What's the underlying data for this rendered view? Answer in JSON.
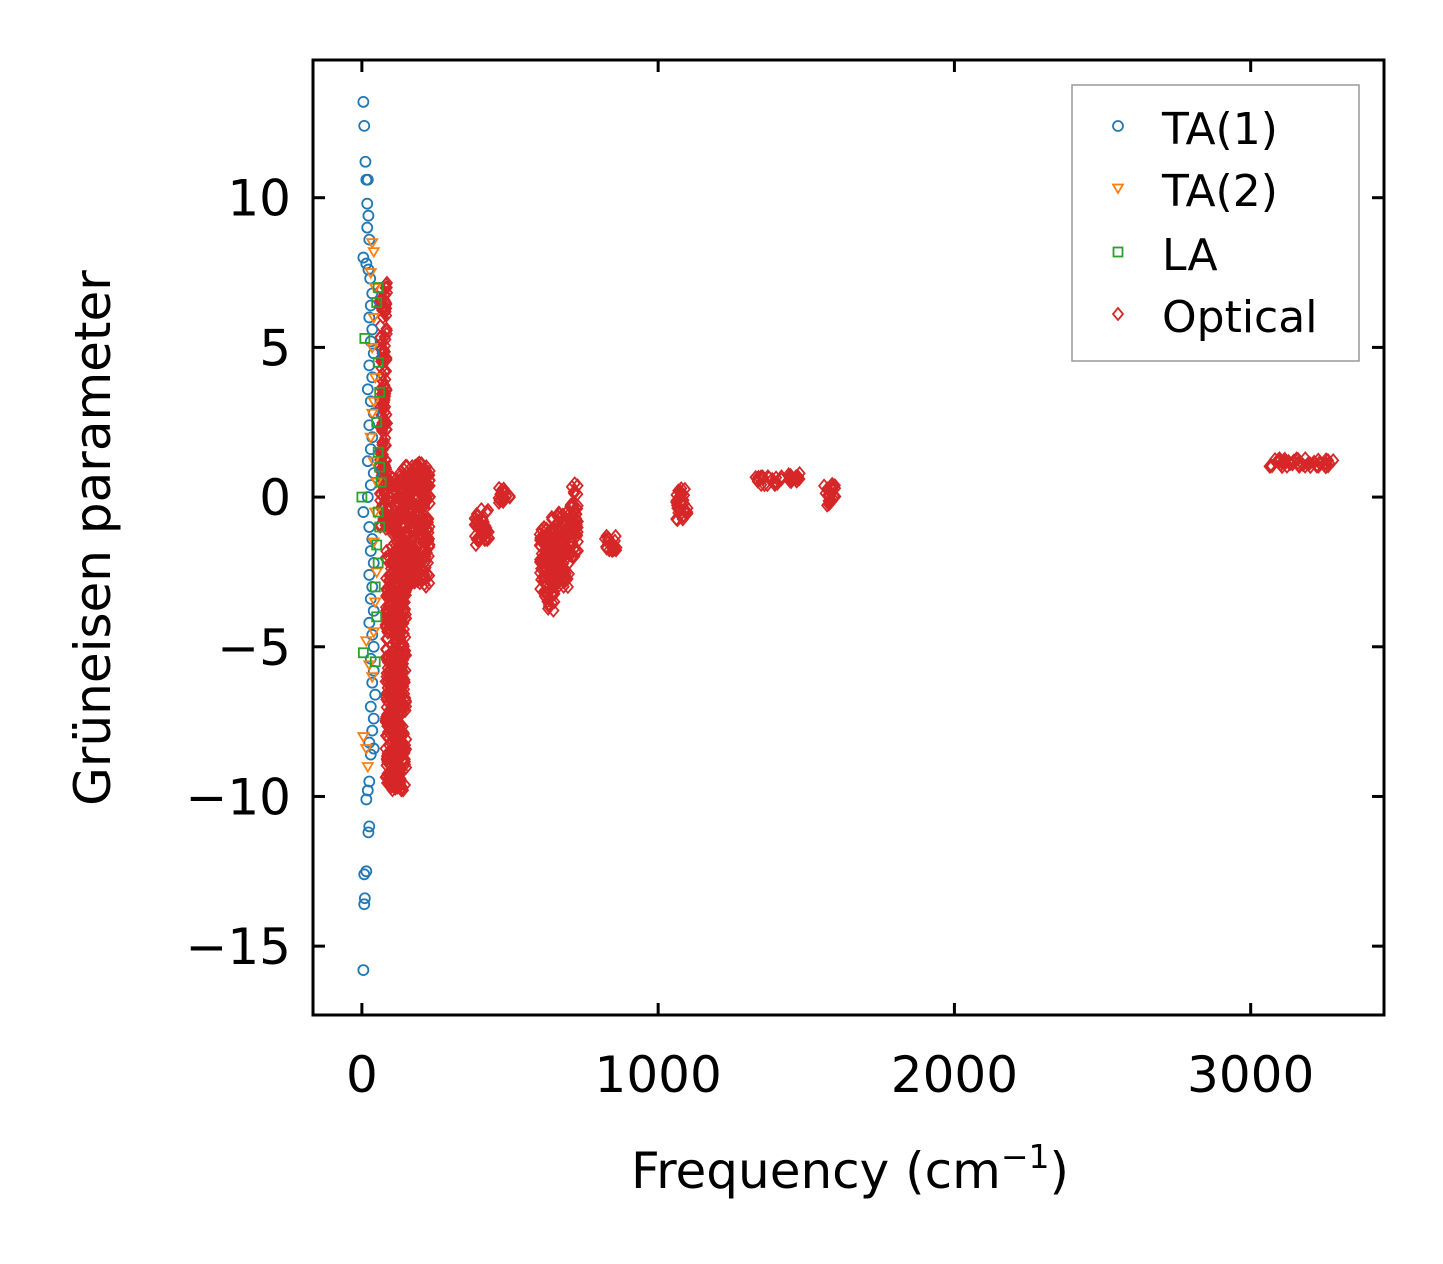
{
  "chart_data": {
    "type": "scatter",
    "title": "",
    "xlabel": "Frequency (cm",
    "xlabel_sup": "−1",
    "xlabel_close": ")",
    "ylabel": "Grüneisen parameter",
    "xlim": [
      -165,
      3450
    ],
    "ylim": [
      -17.3,
      14.6
    ],
    "xticks": [
      0,
      1000,
      2000,
      3000
    ],
    "xtick_labels": [
      "0",
      "1000",
      "2000",
      "3000"
    ],
    "yticks": [
      -15,
      -10,
      -5,
      0,
      5,
      10
    ],
    "ytick_labels": [
      "−15",
      "−10",
      "−5",
      "0",
      "5",
      "10"
    ],
    "grid": false,
    "legend": {
      "placement": "top-right",
      "entries": [
        "TA(1)",
        "TA(2)",
        "LA",
        "Optical"
      ]
    },
    "series": [
      {
        "name": "TA(1)",
        "marker": "circle",
        "color": "#1f77b4",
        "points": [
          [
            5,
            13.2
          ],
          [
            8,
            12.4
          ],
          [
            12,
            11.2
          ],
          [
            15,
            10.6
          ],
          [
            20,
            10.6
          ],
          [
            18,
            9.8
          ],
          [
            22,
            9.4
          ],
          [
            18,
            9.0
          ],
          [
            25,
            8.6
          ],
          [
            5,
            8.0
          ],
          [
            15,
            7.8
          ],
          [
            22,
            7.6
          ],
          [
            28,
            7.3
          ],
          [
            35,
            6.8
          ],
          [
            30,
            6.4
          ],
          [
            25,
            6.0
          ],
          [
            35,
            5.6
          ],
          [
            30,
            5.2
          ],
          [
            40,
            4.8
          ],
          [
            25,
            4.4
          ],
          [
            35,
            4.0
          ],
          [
            20,
            3.6
          ],
          [
            30,
            3.2
          ],
          [
            40,
            2.8
          ],
          [
            25,
            2.4
          ],
          [
            35,
            2.0
          ],
          [
            30,
            1.6
          ],
          [
            20,
            1.2
          ],
          [
            40,
            0.8
          ],
          [
            30,
            0.4
          ],
          [
            20,
            0.0
          ],
          [
            5,
            -0.5
          ],
          [
            25,
            -1.0
          ],
          [
            35,
            -1.4
          ],
          [
            30,
            -1.8
          ],
          [
            40,
            -2.2
          ],
          [
            25,
            -2.6
          ],
          [
            35,
            -3.0
          ],
          [
            30,
            -3.4
          ],
          [
            40,
            -3.8
          ],
          [
            25,
            -4.2
          ],
          [
            35,
            -4.6
          ],
          [
            40,
            -5.0
          ],
          [
            30,
            -5.4
          ],
          [
            40,
            -5.8
          ],
          [
            35,
            -6.2
          ],
          [
            45,
            -6.6
          ],
          [
            30,
            -7.0
          ],
          [
            40,
            -7.4
          ],
          [
            35,
            -7.8
          ],
          [
            25,
            -8.2
          ],
          [
            40,
            -8.4
          ],
          [
            30,
            -8.6
          ],
          [
            25,
            -9.5
          ],
          [
            20,
            -9.8
          ],
          [
            15,
            -10.1
          ],
          [
            25,
            -11.0
          ],
          [
            22,
            -11.2
          ],
          [
            15,
            -12.5
          ],
          [
            8,
            -12.6
          ],
          [
            10,
            -13.4
          ],
          [
            8,
            -13.6
          ],
          [
            5,
            -15.8
          ]
        ]
      },
      {
        "name": "TA(2)",
        "marker": "triangle-down",
        "color": "#ff7f0e",
        "points": [
          [
            35,
            8.5
          ],
          [
            40,
            8.2
          ],
          [
            30,
            7.5
          ],
          [
            45,
            7.0
          ],
          [
            40,
            6.0
          ],
          [
            35,
            5.0
          ],
          [
            45,
            4.0
          ],
          [
            40,
            3.2
          ],
          [
            35,
            2.8
          ],
          [
            30,
            2.0
          ],
          [
            40,
            1.2
          ],
          [
            50,
            0.5
          ],
          [
            45,
            -0.5
          ],
          [
            40,
            -1.5
          ],
          [
            50,
            -2.5
          ],
          [
            45,
            -3.5
          ],
          [
            40,
            -4.5
          ],
          [
            15,
            -4.8
          ],
          [
            25,
            -5.6
          ],
          [
            35,
            -6.0
          ],
          [
            5,
            -8.0
          ],
          [
            15,
            -8.4
          ],
          [
            20,
            -9.0
          ]
        ]
      },
      {
        "name": "LA",
        "marker": "square",
        "color": "#2ca02c",
        "points": [
          [
            55,
            7.0
          ],
          [
            50,
            6.5
          ],
          [
            10,
            5.3
          ],
          [
            55,
            4.5
          ],
          [
            60,
            3.5
          ],
          [
            50,
            2.5
          ],
          [
            55,
            1.5
          ],
          [
            60,
            1.0
          ],
          [
            65,
            0.5
          ],
          [
            0,
            0.0
          ],
          [
            55,
            -0.5
          ],
          [
            60,
            -1.0
          ],
          [
            50,
            -1.6
          ],
          [
            55,
            -2.2
          ],
          [
            45,
            -3.0
          ],
          [
            50,
            -4.0
          ],
          [
            5,
            -5.2
          ],
          [
            45,
            -5.5
          ]
        ]
      },
      {
        "name": "Optical",
        "marker": "diamond",
        "color": "#d62728",
        "clusters": [
          {
            "x": [
              60,
              85
            ],
            "y": [
              -1.0,
              7.2
            ]
          },
          {
            "x": [
              80,
              130
            ],
            "y": [
              -9.8,
              0.8
            ]
          },
          {
            "x": [
              110,
              150
            ],
            "y": [
              -9.8,
              -3.0
            ]
          },
          {
            "x": [
              130,
              230
            ],
            "y": [
              -3.0,
              1.2
            ]
          },
          {
            "x": [
              380,
              430
            ],
            "y": [
              -1.6,
              -0.4
            ]
          },
          {
            "x": [
              460,
              500
            ],
            "y": [
              -0.2,
              0.3
            ]
          },
          {
            "x": [
              600,
              650
            ],
            "y": [
              -3.8,
              -1.0
            ]
          },
          {
            "x": [
              640,
              700
            ],
            "y": [
              -3.0,
              -0.5
            ]
          },
          {
            "x": [
              700,
              730
            ],
            "y": [
              -2.0,
              0.5
            ]
          },
          {
            "x": [
              820,
              860
            ],
            "y": [
              -1.8,
              -1.3
            ]
          },
          {
            "x": [
              1060,
              1100
            ],
            "y": [
              -0.8,
              0.3
            ]
          },
          {
            "x": [
              1320,
              1420
            ],
            "y": [
              0.4,
              0.7
            ]
          },
          {
            "x": [
              1440,
              1480
            ],
            "y": [
              0.5,
              0.8
            ]
          },
          {
            "x": [
              1560,
              1600
            ],
            "y": [
              -0.3,
              0.5
            ]
          },
          {
            "x": [
              3050,
              3280
            ],
            "y": [
              1.0,
              1.3
            ]
          }
        ]
      }
    ]
  }
}
